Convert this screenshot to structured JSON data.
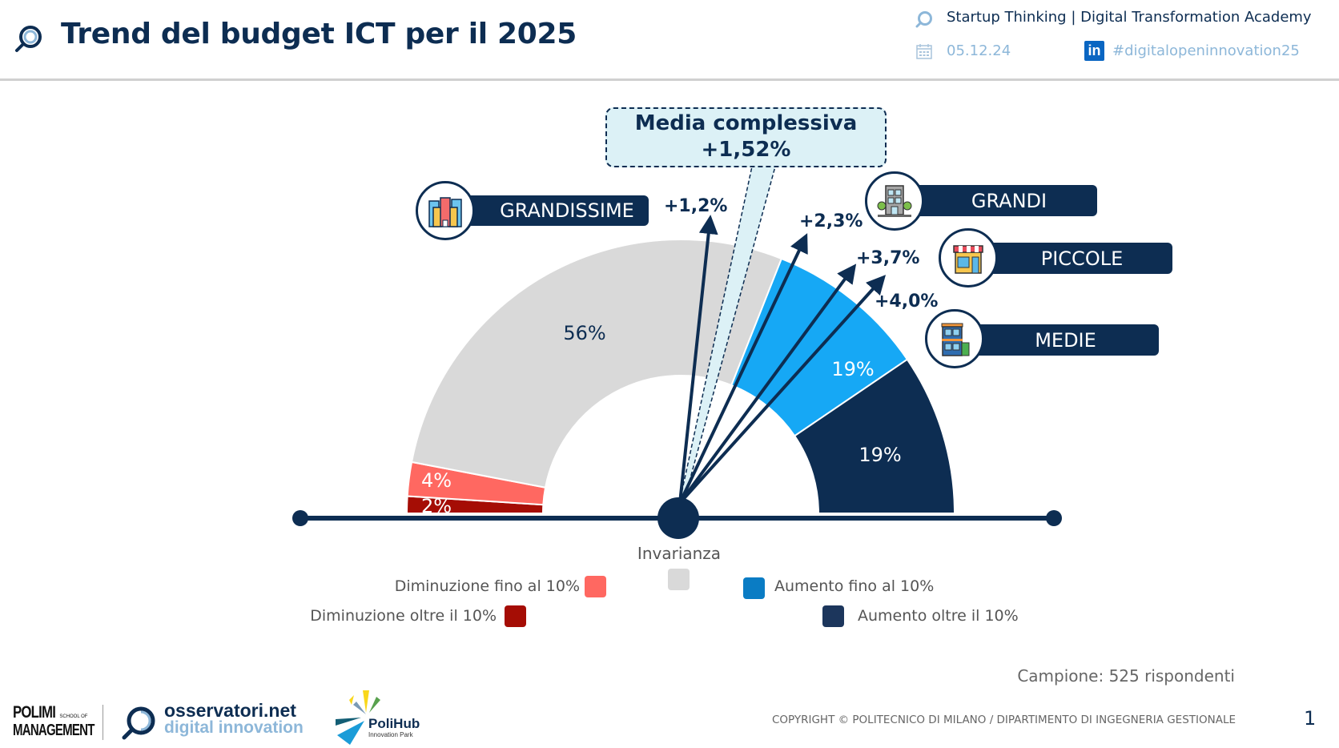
{
  "header": {
    "title": "Trend del budget ICT per il 2025",
    "program": "Startup Thinking | Digital Transformation Academy",
    "date": "05.12.24",
    "hashtag": "#digitalopeninnovation25",
    "icons": [
      "magnifier-logo-icon",
      "calendar-icon",
      "linkedin-icon"
    ]
  },
  "callout": {
    "line1": "Media complessiva",
    "line2": "+1,52%"
  },
  "categories": [
    {
      "name": "GRANDISSIME",
      "change": "+1,2%",
      "icon": "skyscrapers-icon"
    },
    {
      "name": "GRANDI",
      "change": "+2,3%",
      "icon": "office-building-icon"
    },
    {
      "name": "PICCOLE",
      "change": "+3,7%",
      "icon": "shop-icon"
    },
    {
      "name": "MEDIE",
      "change": "+4,0%",
      "icon": "medium-building-icon"
    }
  ],
  "axis": {
    "center_label": "Invarianza"
  },
  "chart_data": {
    "type": "pie",
    "variant": "semi-donut gauge",
    "title": "Trend del budget ICT per il 2025",
    "slices": [
      {
        "label": "Diminuzione oltre il 10%",
        "value": 2,
        "display": "2%",
        "color": "#a50d05"
      },
      {
        "label": "Diminuzione fino al 10%",
        "value": 4,
        "display": "4%",
        "color": "#ff6861"
      },
      {
        "label": "Invarianza",
        "value": 56,
        "display": "56%",
        "color": "#d9d9d9"
      },
      {
        "label": "Aumento fino al 10%",
        "value": 19,
        "display": "19%",
        "color": "#16a8f5"
      },
      {
        "label": "Aumento oltre il 10%",
        "value": 19,
        "display": "19%",
        "color": "#0d2d52"
      }
    ],
    "gauge_needles": [
      {
        "label": "GRANDISSIME",
        "value": 1.2,
        "display": "+1,2%"
      },
      {
        "label": "Media complessiva",
        "value": 1.52,
        "display": "+1,52%"
      },
      {
        "label": "GRANDI",
        "value": 2.3,
        "display": "+2,3%"
      },
      {
        "label": "PICCOLE",
        "value": 3.7,
        "display": "+3,7%"
      },
      {
        "label": "MEDIE",
        "value": 4.0,
        "display": "+4,0%"
      }
    ],
    "legend": [
      {
        "label": "Diminuzione fino al 10%",
        "color": "#ff6861"
      },
      {
        "label": "Diminuzione oltre il 10%",
        "color": "#a50d05"
      },
      {
        "label": "Invarianza",
        "color": "#d9d9d9"
      },
      {
        "label": "Aumento fino al 10%",
        "color": "#0a7cc4"
      },
      {
        "label": "Aumento oltre il 10%",
        "color": "#1c365c"
      }
    ]
  },
  "footer": {
    "sample": "Campione: 525 rispondenti",
    "copyright": "COPYRIGHT © POLITECNICO DI MILANO / DIPARTIMENTO DI INGEGNERIA GESTIONALE",
    "page_number": "1",
    "logos": {
      "polimi_line1": "POLIMI",
      "polimi_school": "SCHOOL OF",
      "polimi_line2": "MANAGEMENT",
      "osservatori_line1": "osservatori.net",
      "osservatori_line2": "digital innovation",
      "polihub_name": "PoliHub",
      "polihub_sub": "Innovation Park"
    }
  },
  "colors": {
    "navy": "#0d2d52",
    "light_blue_text": "#8db7d9",
    "callout_fill": "#dcf1f6"
  }
}
